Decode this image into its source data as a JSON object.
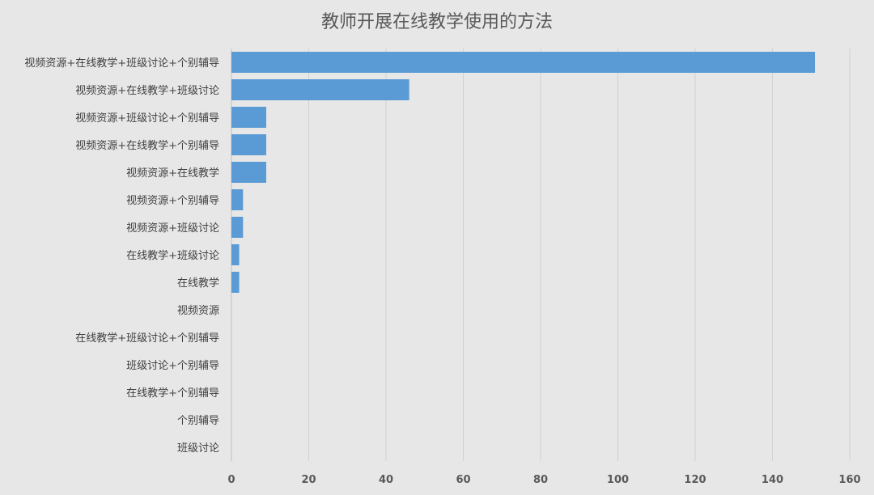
{
  "chart_data": {
    "type": "bar",
    "orientation": "horizontal",
    "title": "教师开展在线教学使用的方法",
    "xlabel": "",
    "ylabel": "",
    "categories": [
      "视频资源+在线教学+班级讨论+个别辅导",
      "视频资源+在线教学+班级讨论",
      "视频资源+班级讨论+个别辅导",
      "视频资源+在线教学+个别辅导",
      "视频资源+在线教学",
      "视频资源+个别辅导",
      "视频资源+班级讨论",
      "在线教学+班级讨论",
      "在线教学",
      "视频资源",
      "在线教学+班级讨论+个别辅导",
      "班级讨论+个别辅导",
      "在线教学+个别辅导",
      "个别辅导",
      "班级讨论"
    ],
    "values": [
      151,
      46,
      9,
      9,
      9,
      3,
      3,
      2,
      2,
      0,
      0,
      0,
      0,
      0,
      0
    ],
    "xlim": [
      0,
      160
    ],
    "xticks": [
      "0",
      "20",
      "40",
      "60",
      "80",
      "100",
      "120",
      "140",
      "160"
    ],
    "grid": "vertical",
    "legend": "none",
    "bar_color": "#5b9bd5"
  }
}
